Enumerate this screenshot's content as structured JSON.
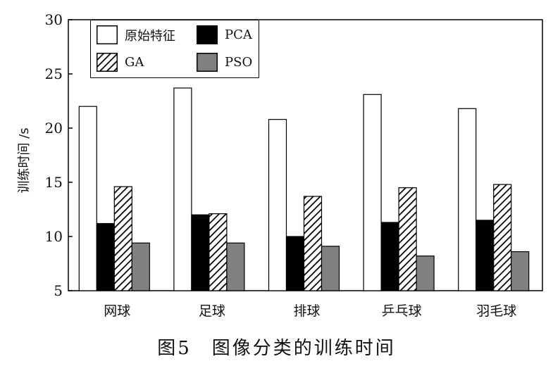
{
  "caption": "图5　图像分类的训练时间",
  "chart_data": {
    "type": "bar",
    "categories": [
      "网球",
      "足球",
      "排球",
      "乒乓球",
      "羽毛球"
    ],
    "series": [
      {
        "name": "原始特征",
        "values": [
          22.0,
          23.7,
          20.8,
          23.1,
          21.8
        ],
        "fill": "#ffffff",
        "pattern": "none"
      },
      {
        "name": "PCA",
        "values": [
          11.2,
          12.0,
          10.0,
          11.3,
          11.5
        ],
        "fill": "#000000",
        "pattern": "none"
      },
      {
        "name": "GA",
        "values": [
          14.6,
          12.1,
          13.7,
          14.5,
          14.8
        ],
        "fill": "#ffffff",
        "pattern": "hatch"
      },
      {
        "name": "PSO",
        "values": [
          9.4,
          9.4,
          9.1,
          8.2,
          8.6
        ],
        "fill": "#808080",
        "pattern": "none"
      }
    ],
    "ylabel": "训练时间 /s",
    "xlabel": "",
    "ylim": [
      5,
      30
    ],
    "yticks": [
      5,
      10,
      15,
      20,
      25,
      30
    ],
    "legend_position": "top-left",
    "grid": false
  }
}
